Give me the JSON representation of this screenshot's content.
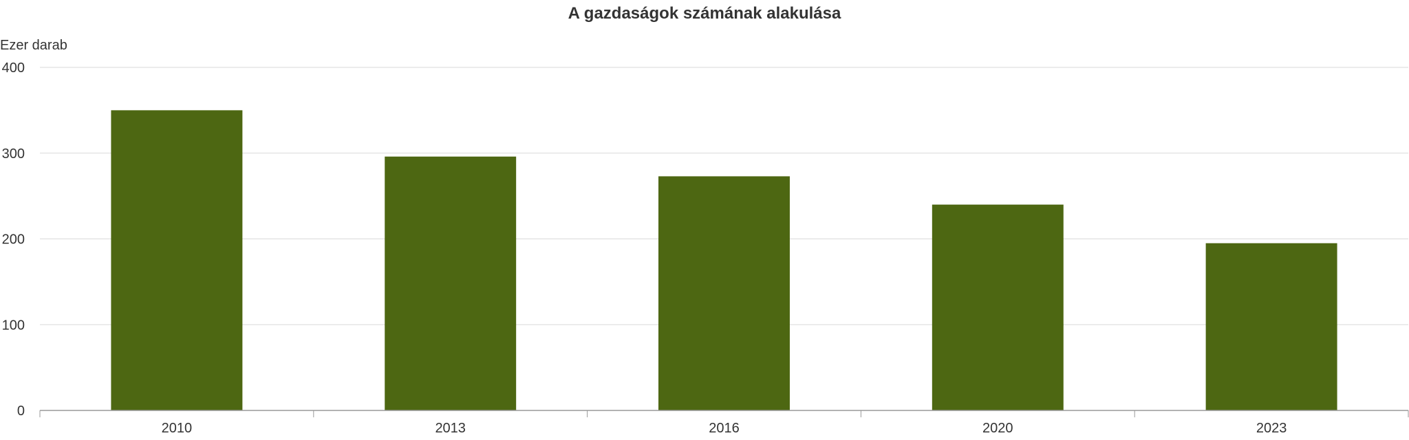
{
  "chart_data": {
    "type": "bar",
    "title": "A gazdaságok számának alakulása",
    "ylabel": "Ezer darab",
    "xlabel": "",
    "categories": [
      "2010",
      "2013",
      "2016",
      "2020",
      "2023"
    ],
    "values": [
      350,
      296,
      273,
      240,
      195
    ],
    "ylim": [
      0,
      400
    ],
    "yticks": [
      0,
      100,
      200,
      300,
      400
    ],
    "grid": true,
    "bar_color": "#4d6712",
    "grid_color": "#d9d9d9",
    "axis_color": "#999999"
  }
}
